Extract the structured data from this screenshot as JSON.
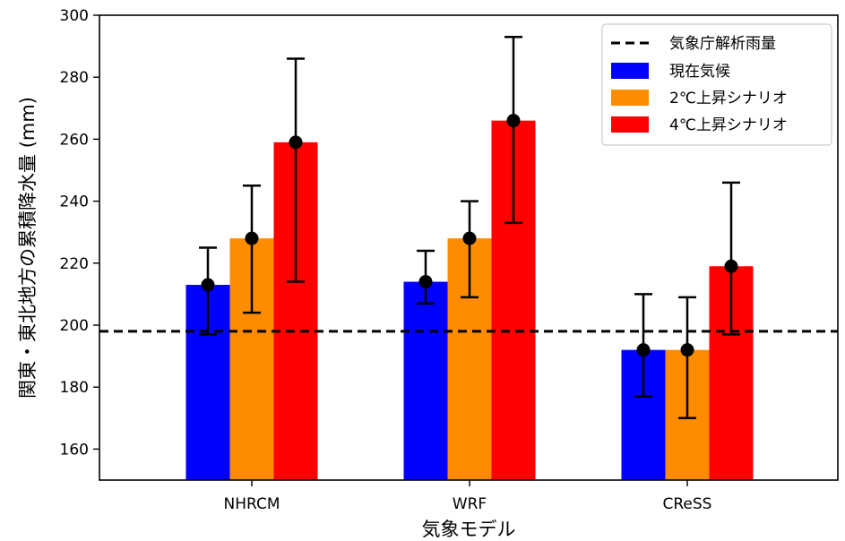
{
  "chart_data": {
    "type": "bar",
    "title": "",
    "xlabel": "気象モデル",
    "ylabel": "関東・東北地方の累積降水量 (mm)",
    "categories": [
      "NHRCM",
      "WRF",
      "CReSS"
    ],
    "ylim": [
      150,
      300
    ],
    "yticks": [
      160,
      180,
      200,
      220,
      240,
      260,
      280,
      300
    ],
    "grid": false,
    "legend_position": "top-right",
    "reference_line": {
      "name": "気象庁解析雨量",
      "value": 198,
      "style": "dashed",
      "color": "#000000"
    },
    "series": [
      {
        "name": "現在気候",
        "color": "#0000ff",
        "values": [
          213,
          214,
          192
        ],
        "error_low": [
          197,
          207,
          177
        ],
        "error_high": [
          225,
          224,
          210
        ]
      },
      {
        "name": "2℃上昇シナリオ",
        "color": "#ff8c00",
        "values": [
          228,
          228,
          192
        ],
        "error_low": [
          204,
          209,
          170
        ],
        "error_high": [
          245,
          240,
          209
        ]
      },
      {
        "name": "4℃上昇シナリオ",
        "color": "#ff0000",
        "values": [
          259,
          266,
          219
        ],
        "error_low": [
          214,
          233,
          197
        ],
        "error_high": [
          286,
          293,
          246
        ]
      }
    ]
  }
}
